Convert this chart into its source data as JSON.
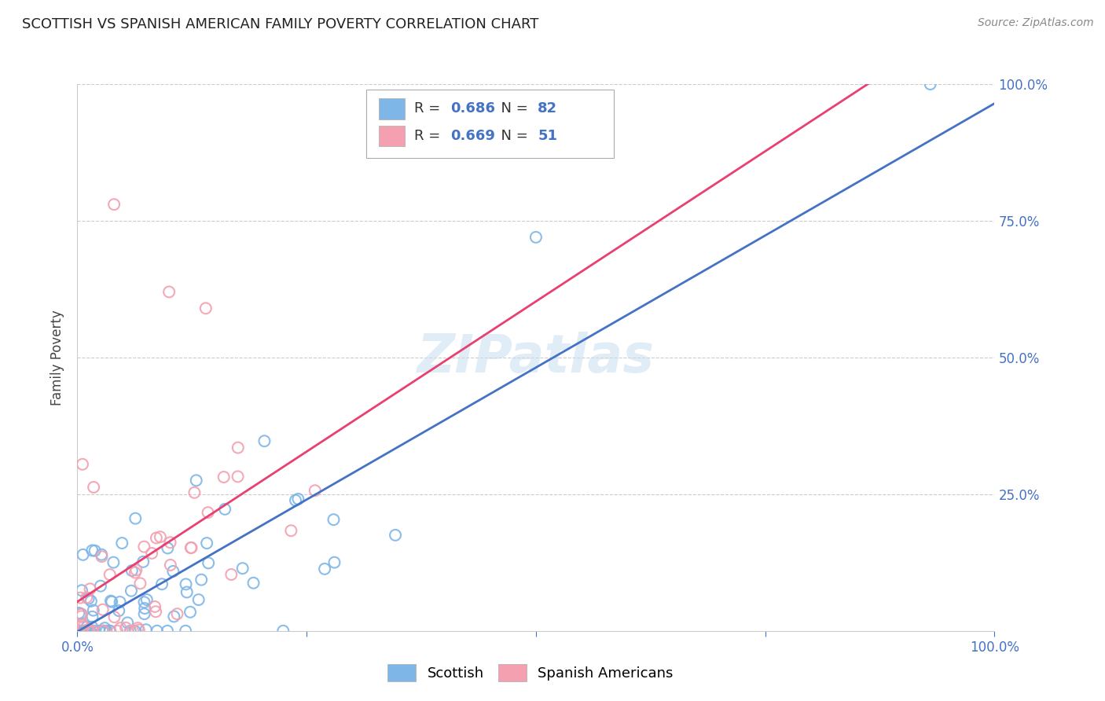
{
  "title": "SCOTTISH VS SPANISH AMERICAN FAMILY POVERTY CORRELATION CHART",
  "source": "Source: ZipAtlas.com",
  "ylabel": "Family Poverty",
  "xlim": [
    0,
    1
  ],
  "ylim": [
    0,
    1
  ],
  "xticks": [
    0,
    0.25,
    0.5,
    0.75,
    1.0
  ],
  "yticks": [
    0.25,
    0.5,
    0.75,
    1.0
  ],
  "xticklabels": [
    "0.0%",
    "",
    "",
    "",
    "100.0%"
  ],
  "yticklabels": [
    "25.0%",
    "50.0%",
    "75.0%",
    "100.0%"
  ],
  "scottish_color": "#7EB6E8",
  "spanish_color": "#F4A0B0",
  "scottish_line_color": "#4472C4",
  "spanish_line_color": "#E84070",
  "R_scottish": 0.686,
  "N_scottish": 82,
  "R_spanish": 0.669,
  "N_spanish": 51,
  "watermark": "ZIPatlas",
  "scottish_label": "Scottish",
  "spanish_label": "Spanish Americans",
  "legend_R_color": "#333333",
  "legend_N_color": "#4472C4",
  "background": "#ffffff",
  "grid_color": "#cccccc",
  "spine_color": "#cccccc",
  "title_color": "#222222",
  "source_color": "#888888"
}
